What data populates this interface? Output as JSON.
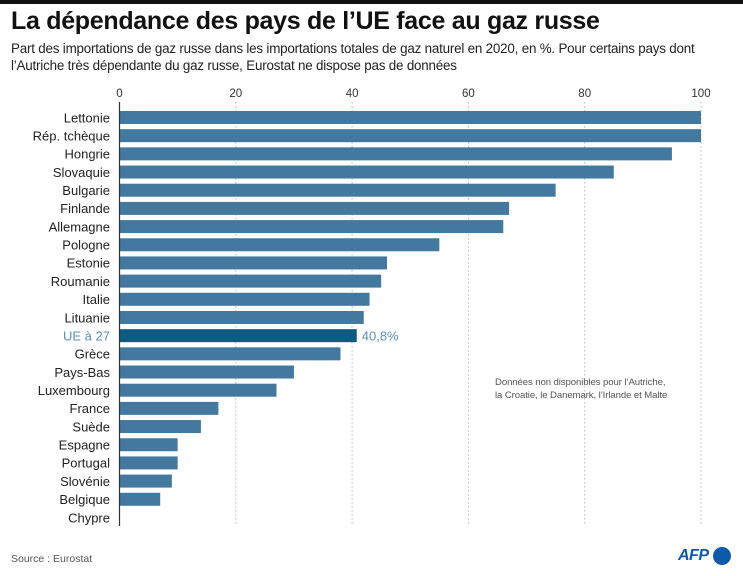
{
  "header": {
    "title": "La dépendance des pays de l’UE face au gaz russe",
    "subtitle": "Part des importations de gaz russe dans les importations totales de gaz naturel en 2020, en %. Pour certains pays dont l’Autriche très dépendante du gaz russe, Eurostat ne dispose pas de données"
  },
  "note": {
    "line1": "Données non disponibles pour l’Autriche,",
    "line2": "la Croatie, le Danemark, l’Irlande et Malte"
  },
  "footer": {
    "source": "Source : Eurostat",
    "logo": "AFP"
  },
  "colors": {
    "bar": "#43799f",
    "highlight_bar": "#0e5a80",
    "highlight_label": "#5a8fb8",
    "logo": "#0c5aa8"
  },
  "chart_data": {
    "type": "bar",
    "orientation": "horizontal",
    "title": "La dépendance des pays de l’UE face au gaz russe",
    "xlabel": "",
    "ylabel": "",
    "unit": "%",
    "xlim": [
      0,
      100
    ],
    "xticks": [
      0,
      20,
      40,
      60,
      80,
      100
    ],
    "grid": "vertical dotted",
    "categories": [
      "Lettonie",
      "Rép. tchèque",
      "Hongrie",
      "Slovaquie",
      "Bulgarie",
      "Finlande",
      "Allemagne",
      "Pologne",
      "Estonie",
      "Roumanie",
      "Italie",
      "Lituanie",
      "UE à 27",
      "Grèce",
      "Pays-Bas",
      "Luxembourg",
      "France",
      "Suède",
      "Espagne",
      "Portugal",
      "Slovénie",
      "Belgique",
      "Chypre"
    ],
    "values": [
      100,
      100,
      95,
      85,
      75,
      67,
      66,
      55,
      46,
      45,
      43,
      42,
      40.8,
      38,
      30,
      27,
      17,
      14,
      10,
      10,
      9,
      7,
      0
    ],
    "highlight": {
      "category": "UE à 27",
      "label": "40,8%"
    }
  }
}
